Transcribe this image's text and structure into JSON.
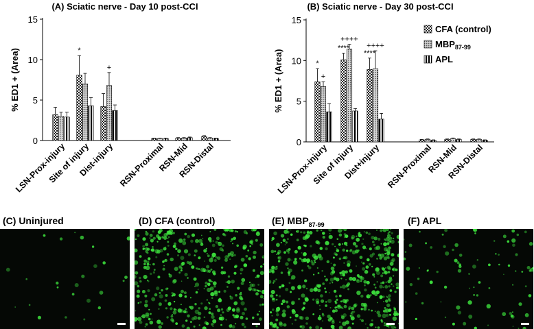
{
  "chart_data": [
    {
      "type": "bar",
      "title": "(A) Sciatic nerve - Day 10 post-CCI",
      "ylabel": "% ED1 + (Area)",
      "ylim": [
        0,
        15
      ],
      "yticks": [
        0,
        5,
        10,
        15
      ],
      "categories": [
        "LSN-Prox-injury",
        "Site of injury",
        "Dist-injury",
        "RSN-Proximal",
        "RSN-Mid",
        "RSN-Distal"
      ],
      "series": [
        {
          "name": "CFA (control)",
          "values": [
            3.2,
            8.1,
            4.2,
            0.25,
            0.3,
            0.5
          ],
          "errors": [
            0.9,
            2.4,
            1.6,
            0.05,
            0.06,
            0.1
          ]
        },
        {
          "name": "MBP87-99",
          "values": [
            3.0,
            7.0,
            6.8,
            0.25,
            0.3,
            0.3
          ],
          "errors": [
            0.5,
            1.3,
            1.6,
            0.05,
            0.06,
            0.06
          ]
        },
        {
          "name": "APL",
          "values": [
            2.9,
            4.3,
            3.7,
            0.25,
            0.35,
            0.25
          ],
          "errors": [
            0.6,
            1.0,
            0.7,
            0.05,
            0.08,
            0.05
          ]
        }
      ],
      "annotations": [
        {
          "category": 1,
          "series": 0,
          "text": "*"
        },
        {
          "category": 2,
          "series": 1,
          "text": "+"
        }
      ],
      "grid": false
    },
    {
      "type": "bar",
      "title": "(B) Sciatic nerve - Day 30 post-CCI",
      "ylabel": "% ED1 + (Area)",
      "ylim": [
        0,
        15
      ],
      "yticks": [
        0,
        5,
        10,
        15
      ],
      "categories": [
        "LSN-Prox-injury",
        "Site of injury",
        "Dist+injury",
        "RSN-Proximal",
        "RSN-Mid",
        "RSN-Distal"
      ],
      "series": [
        {
          "name": "CFA (control)",
          "values": [
            7.4,
            10.1,
            8.9,
            0.25,
            0.3,
            0.3
          ],
          "errors": [
            1.6,
            0.8,
            1.4,
            0.05,
            0.06,
            0.06
          ]
        },
        {
          "name": "MBP87-99",
          "values": [
            6.8,
            11.4,
            9.0,
            0.3,
            0.4,
            0.3
          ],
          "errors": [
            0.6,
            0.6,
            2.2,
            0.06,
            0.08,
            0.06
          ]
        },
        {
          "name": "APL",
          "values": [
            3.7,
            3.8,
            2.8,
            0.2,
            0.3,
            0.2
          ],
          "errors": [
            1.0,
            0.3,
            0.7,
            0.05,
            0.06,
            0.05
          ]
        }
      ],
      "annotations": [
        {
          "category": 0,
          "series": 0,
          "text": "*"
        },
        {
          "category": 0,
          "series": 1,
          "text": "+"
        },
        {
          "category": 1,
          "series": 0,
          "text": "****"
        },
        {
          "category": 1,
          "series": 1,
          "text": "++++"
        },
        {
          "category": 2,
          "series": 0,
          "text": "****"
        },
        {
          "category": 2,
          "series": 1,
          "text": "++++"
        }
      ],
      "legend": {
        "placement": "top-right",
        "entries": [
          {
            "text": "CFA (control)"
          },
          {
            "text": "MBP",
            "sub": "87-99"
          },
          {
            "text": "APL"
          }
        ]
      },
      "grid": false
    }
  ],
  "micrographs": [
    {
      "label": "(C) Uninjured"
    },
    {
      "label": "(D) CFA (control)"
    },
    {
      "label": "(E) MBP",
      "label_sub": "87-99"
    },
    {
      "label": "(F) APL"
    }
  ],
  "colors": {
    "micrograph_background": "#050805",
    "stain": "#3ee63e",
    "axis": "#000000"
  }
}
